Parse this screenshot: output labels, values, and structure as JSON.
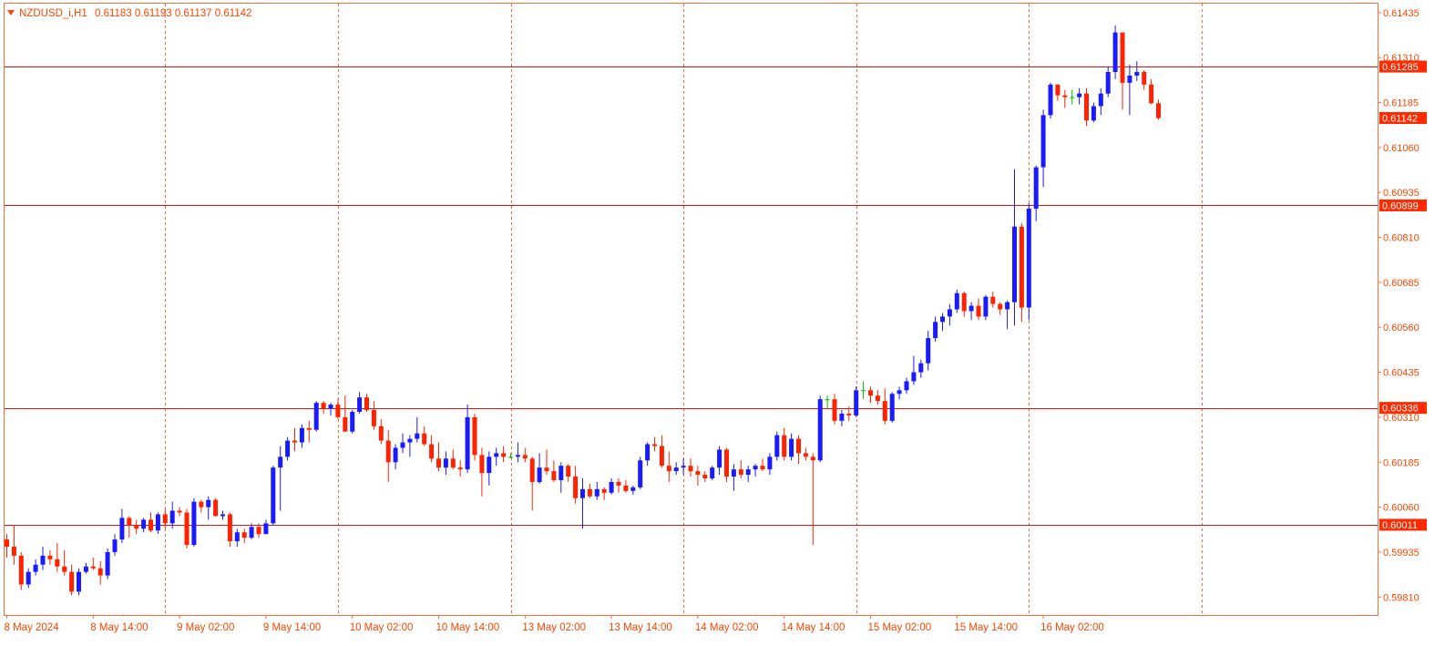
{
  "header": {
    "symbol_label": "NZDUSD_i,H1",
    "ohlc_label": "0.61183 0.61193 0.61137 0.61142"
  },
  "colors": {
    "background": "#ffffff",
    "frame": "#ff6a3d",
    "axis_text": "#ff4500",
    "grid": "#ff6a3d",
    "bull": "#1a1aff",
    "bear": "#ff2200",
    "neutral": "#00bb00",
    "hline": "#e01010",
    "tag_bg": "#ff2a00",
    "tag_text": "#ffffff"
  },
  "chart_data": {
    "type": "candlestick",
    "symbol": "NZDUSD_i",
    "timeframe": "H1",
    "ylim": [
      0.5976,
      0.6146
    ],
    "y_ticks": [
      0.61435,
      0.6131,
      0.61185,
      0.6106,
      0.60935,
      0.6081,
      0.60685,
      0.6056,
      0.60435,
      0.6031,
      0.60185,
      0.6006,
      0.59935,
      0.5981
    ],
    "y_tick_labels": [
      "0.61435",
      "0.61310",
      "0.61185",
      "0.61060",
      "0.60935",
      "0.60810",
      "0.60685",
      "0.60560",
      "0.60435",
      "0.60310",
      "0.60185",
      "0.60060",
      "0.59935",
      "0.59810"
    ],
    "x_labels": [
      {
        "bar": 0,
        "label": "8 May 2024"
      },
      {
        "bar": 12,
        "label": "8 May 14:00"
      },
      {
        "bar": 24,
        "label": "9 May 02:00"
      },
      {
        "bar": 36,
        "label": "9 May 14:00"
      },
      {
        "bar": 48,
        "label": "10 May 02:00"
      },
      {
        "bar": 60,
        "label": "10 May 14:00"
      },
      {
        "bar": 72,
        "label": "13 May 02:00"
      },
      {
        "bar": 84,
        "label": "13 May 14:00"
      },
      {
        "bar": 96,
        "label": "14 May 02:00"
      },
      {
        "bar": 108,
        "label": "14 May 14:00"
      },
      {
        "bar": 120,
        "label": "15 May 02:00"
      },
      {
        "bar": 132,
        "label": "15 May 14:00"
      },
      {
        "bar": 144,
        "label": "16 May 02:00"
      }
    ],
    "vgrid_bars": [
      22,
      46,
      70,
      94,
      118,
      142,
      166
    ],
    "horizontal_lines": [
      {
        "price": 0.61285,
        "label": "0.61285"
      },
      {
        "price": 0.60899,
        "label": "0.60899"
      },
      {
        "price": 0.60336,
        "label": "0.60336"
      },
      {
        "price": 0.60011,
        "label": "0.60011"
      }
    ],
    "current_price": {
      "price": 0.61142,
      "label": "0.61142"
    },
    "candles": [
      [
        0.5997,
        0.59985,
        0.5992,
        0.5995
      ],
      [
        0.5995,
        0.6001,
        0.599,
        0.59925
      ],
      [
        0.59925,
        0.59935,
        0.5983,
        0.59845
      ],
      [
        0.59845,
        0.5989,
        0.59835,
        0.5988
      ],
      [
        0.5988,
        0.59915,
        0.5987,
        0.599
      ],
      [
        0.599,
        0.5995,
        0.59885,
        0.59925
      ],
      [
        0.59925,
        0.5994,
        0.599,
        0.59915
      ],
      [
        0.59915,
        0.5996,
        0.5988,
        0.59895
      ],
      [
        0.59895,
        0.5994,
        0.5987,
        0.5988
      ],
      [
        0.5988,
        0.599,
        0.59815,
        0.59825
      ],
      [
        0.59825,
        0.5989,
        0.59815,
        0.5988
      ],
      [
        0.5988,
        0.59905,
        0.59875,
        0.59895
      ],
      [
        0.59895,
        0.5992,
        0.59885,
        0.5989
      ],
      [
        0.5989,
        0.5991,
        0.59845,
        0.5987
      ],
      [
        0.5987,
        0.59945,
        0.5986,
        0.59935
      ],
      [
        0.59935,
        0.59985,
        0.59925,
        0.5997
      ],
      [
        0.5997,
        0.60055,
        0.5996,
        0.6003
      ],
      [
        0.6003,
        0.60035,
        0.59975,
        0.6001
      ],
      [
        0.6001,
        0.60025,
        0.59985,
        0.6
      ],
      [
        0.6,
        0.6003,
        0.5999,
        0.60025
      ],
      [
        0.60025,
        0.60045,
        0.5999,
        0.59995
      ],
      [
        0.59995,
        0.60045,
        0.59985,
        0.6004
      ],
      [
        0.6004,
        0.60055,
        0.6,
        0.60015
      ],
      [
        0.60015,
        0.60075,
        0.6,
        0.6005
      ],
      [
        0.6005,
        0.6006,
        0.60035,
        0.60045
      ],
      [
        0.60045,
        0.60055,
        0.59945,
        0.59955
      ],
      [
        0.59955,
        0.60085,
        0.5995,
        0.60075
      ],
      [
        0.60075,
        0.6008,
        0.60045,
        0.6006
      ],
      [
        0.6006,
        0.6009,
        0.60025,
        0.6008
      ],
      [
        0.6008,
        0.60085,
        0.60035,
        0.60035
      ],
      [
        0.60035,
        0.6005,
        0.60025,
        0.6004
      ],
      [
        0.6004,
        0.60045,
        0.5995,
        0.59965
      ],
      [
        0.59965,
        0.6,
        0.5995,
        0.5999
      ],
      [
        0.5999,
        0.6,
        0.5996,
        0.59975
      ],
      [
        0.59975,
        0.60015,
        0.5997,
        0.60005
      ],
      [
        0.60005,
        0.60015,
        0.59975,
        0.59985
      ],
      [
        0.59985,
        0.60025,
        0.59985,
        0.60015
      ],
      [
        0.60015,
        0.60175,
        0.6001,
        0.6017
      ],
      [
        0.6017,
        0.6023,
        0.6005,
        0.602
      ],
      [
        0.602,
        0.60255,
        0.6019,
        0.60245
      ],
      [
        0.60245,
        0.6028,
        0.60215,
        0.6024
      ],
      [
        0.6024,
        0.6029,
        0.60225,
        0.6028
      ],
      [
        0.6028,
        0.603,
        0.6024,
        0.60275
      ],
      [
        0.60275,
        0.60355,
        0.6027,
        0.6035
      ],
      [
        0.6035,
        0.60355,
        0.6032,
        0.60335
      ],
      [
        0.60335,
        0.6035,
        0.60315,
        0.60345
      ],
      [
        0.60345,
        0.6036,
        0.60305,
        0.6031
      ],
      [
        0.6031,
        0.6037,
        0.6027,
        0.6027
      ],
      [
        0.6027,
        0.6033,
        0.60265,
        0.60325
      ],
      [
        0.60325,
        0.6038,
        0.6032,
        0.60365
      ],
      [
        0.60365,
        0.60375,
        0.60325,
        0.6033
      ],
      [
        0.6033,
        0.60355,
        0.60275,
        0.60285
      ],
      [
        0.60285,
        0.60305,
        0.60235,
        0.60245
      ],
      [
        0.60245,
        0.60275,
        0.6013,
        0.60185
      ],
      [
        0.60185,
        0.60235,
        0.60165,
        0.60225
      ],
      [
        0.60225,
        0.60265,
        0.6021,
        0.6024
      ],
      [
        0.6024,
        0.6026,
        0.602,
        0.6025
      ],
      [
        0.6025,
        0.6031,
        0.6024,
        0.60265
      ],
      [
        0.60265,
        0.60285,
        0.6023,
        0.60235
      ],
      [
        0.60235,
        0.6026,
        0.60185,
        0.60195
      ],
      [
        0.60195,
        0.6024,
        0.6016,
        0.6017
      ],
      [
        0.6017,
        0.60215,
        0.6015,
        0.60195
      ],
      [
        0.60195,
        0.6022,
        0.60165,
        0.6017
      ],
      [
        0.6017,
        0.6019,
        0.60145,
        0.60165
      ],
      [
        0.60165,
        0.60345,
        0.60155,
        0.6031
      ],
      [
        0.6031,
        0.6032,
        0.6019,
        0.60205
      ],
      [
        0.60205,
        0.60225,
        0.6009,
        0.60155
      ],
      [
        0.60155,
        0.60215,
        0.6012,
        0.602
      ],
      [
        0.602,
        0.60225,
        0.60175,
        0.6021
      ],
      [
        0.6021,
        0.6023,
        0.60185,
        0.602
      ],
      [
        0.602,
        0.6021,
        0.60195,
        0.602
      ],
      [
        0.602,
        0.6024,
        0.60185,
        0.60205
      ],
      [
        0.60205,
        0.60225,
        0.60185,
        0.60195
      ],
      [
        0.60195,
        0.602,
        0.6005,
        0.6013
      ],
      [
        0.6013,
        0.6021,
        0.60125,
        0.6017
      ],
      [
        0.6017,
        0.6022,
        0.6015,
        0.6016
      ],
      [
        0.6016,
        0.6019,
        0.6013,
        0.60135
      ],
      [
        0.60135,
        0.60185,
        0.601,
        0.60175
      ],
      [
        0.60175,
        0.6018,
        0.6013,
        0.60145
      ],
      [
        0.60145,
        0.60175,
        0.6007,
        0.60085
      ],
      [
        0.60085,
        0.6014,
        0.6,
        0.6011
      ],
      [
        0.6011,
        0.60125,
        0.60085,
        0.6009
      ],
      [
        0.6009,
        0.6013,
        0.6008,
        0.6011
      ],
      [
        0.6011,
        0.60115,
        0.6008,
        0.601
      ],
      [
        0.601,
        0.6014,
        0.60095,
        0.6013
      ],
      [
        0.6013,
        0.6014,
        0.601,
        0.6012
      ],
      [
        0.6012,
        0.60135,
        0.601,
        0.60105
      ],
      [
        0.60105,
        0.6012,
        0.60095,
        0.60115
      ],
      [
        0.60115,
        0.602,
        0.6011,
        0.6019
      ],
      [
        0.6019,
        0.6024,
        0.60175,
        0.60235
      ],
      [
        0.60235,
        0.60255,
        0.60215,
        0.6023
      ],
      [
        0.6023,
        0.6026,
        0.6017,
        0.60175
      ],
      [
        0.60175,
        0.60215,
        0.6013,
        0.6016
      ],
      [
        0.6016,
        0.60185,
        0.6015,
        0.6017
      ],
      [
        0.6017,
        0.60195,
        0.6015,
        0.60175
      ],
      [
        0.60175,
        0.60195,
        0.60145,
        0.6016
      ],
      [
        0.6016,
        0.60175,
        0.6012,
        0.6015
      ],
      [
        0.6015,
        0.6016,
        0.6013,
        0.6014
      ],
      [
        0.6014,
        0.60175,
        0.60135,
        0.6017
      ],
      [
        0.6017,
        0.6023,
        0.6015,
        0.6022
      ],
      [
        0.6022,
        0.60225,
        0.6013,
        0.60145
      ],
      [
        0.60145,
        0.6018,
        0.60105,
        0.60165
      ],
      [
        0.60165,
        0.6019,
        0.6014,
        0.6015
      ],
      [
        0.6015,
        0.60175,
        0.6013,
        0.60165
      ],
      [
        0.60165,
        0.6018,
        0.60145,
        0.60175
      ],
      [
        0.60175,
        0.60195,
        0.6016,
        0.60165
      ],
      [
        0.60165,
        0.6021,
        0.6015,
        0.602
      ],
      [
        0.602,
        0.6027,
        0.6019,
        0.6026
      ],
      [
        0.6026,
        0.6028,
        0.6019,
        0.602
      ],
      [
        0.602,
        0.60265,
        0.6019,
        0.6025
      ],
      [
        0.6025,
        0.6026,
        0.6018,
        0.6021
      ],
      [
        0.6021,
        0.60225,
        0.6019,
        0.602
      ],
      [
        0.602,
        0.6021,
        0.59955,
        0.6019
      ],
      [
        0.6019,
        0.6037,
        0.60185,
        0.6036
      ],
      [
        0.6036,
        0.6037,
        0.60335,
        0.6036
      ],
      [
        0.6036,
        0.60375,
        0.6029,
        0.603
      ],
      [
        0.603,
        0.6033,
        0.60285,
        0.6032
      ],
      [
        0.6032,
        0.6034,
        0.603,
        0.60315
      ],
      [
        0.60315,
        0.60395,
        0.6031,
        0.60385
      ],
      [
        0.60385,
        0.6041,
        0.6036,
        0.60385
      ],
      [
        0.60385,
        0.60395,
        0.6035,
        0.6037
      ],
      [
        0.6037,
        0.60385,
        0.60345,
        0.60355
      ],
      [
        0.60355,
        0.6039,
        0.6029,
        0.603
      ],
      [
        0.603,
        0.6038,
        0.60295,
        0.60375
      ],
      [
        0.60375,
        0.60395,
        0.6036,
        0.60385
      ],
      [
        0.60385,
        0.6042,
        0.60375,
        0.6041
      ],
      [
        0.6041,
        0.6048,
        0.604,
        0.60435
      ],
      [
        0.60435,
        0.6047,
        0.6042,
        0.6046
      ],
      [
        0.6046,
        0.6055,
        0.6044,
        0.6053
      ],
      [
        0.6053,
        0.6059,
        0.6052,
        0.60575
      ],
      [
        0.60575,
        0.606,
        0.6055,
        0.6059
      ],
      [
        0.6059,
        0.60625,
        0.60565,
        0.6061
      ],
      [
        0.6061,
        0.60665,
        0.606,
        0.60655
      ],
      [
        0.60655,
        0.6066,
        0.6059,
        0.60605
      ],
      [
        0.60605,
        0.6063,
        0.6058,
        0.6062
      ],
      [
        0.6062,
        0.6064,
        0.6058,
        0.6059
      ],
      [
        0.6059,
        0.6065,
        0.6058,
        0.60645
      ],
      [
        0.60645,
        0.6066,
        0.60615,
        0.60625
      ],
      [
        0.60625,
        0.6063,
        0.60595,
        0.6061
      ],
      [
        0.6061,
        0.60635,
        0.60555,
        0.6063
      ],
      [
        0.6063,
        0.61,
        0.60565,
        0.6084
      ],
      [
        0.6084,
        0.6085,
        0.60575,
        0.60615
      ],
      [
        0.60615,
        0.60905,
        0.6058,
        0.6089
      ],
      [
        0.6089,
        0.6101,
        0.60855,
        0.61005
      ],
      [
        0.61005,
        0.61165,
        0.6095,
        0.6115
      ],
      [
        0.6115,
        0.6124,
        0.6114,
        0.61235
      ],
      [
        0.61235,
        0.61235,
        0.6119,
        0.61205
      ],
      [
        0.61205,
        0.6122,
        0.6117,
        0.612
      ],
      [
        0.612,
        0.6122,
        0.6118,
        0.612
      ],
      [
        0.612,
        0.61225,
        0.6118,
        0.6121
      ],
      [
        0.6121,
        0.61225,
        0.6112,
        0.61135
      ],
      [
        0.61135,
        0.61185,
        0.6113,
        0.61175
      ],
      [
        0.61175,
        0.61225,
        0.6115,
        0.6121
      ],
      [
        0.6121,
        0.61285,
        0.612,
        0.6127
      ],
      [
        0.6127,
        0.614,
        0.6125,
        0.6138
      ],
      [
        0.6138,
        0.6138,
        0.61165,
        0.6124
      ],
      [
        0.6124,
        0.6129,
        0.6115,
        0.6126
      ],
      [
        0.6126,
        0.613,
        0.61245,
        0.6127
      ],
      [
        0.6127,
        0.61275,
        0.6122,
        0.61235
      ],
      [
        0.61235,
        0.6125,
        0.6118,
        0.61183
      ],
      [
        0.61183,
        0.61193,
        0.61137,
        0.61142
      ]
    ]
  }
}
